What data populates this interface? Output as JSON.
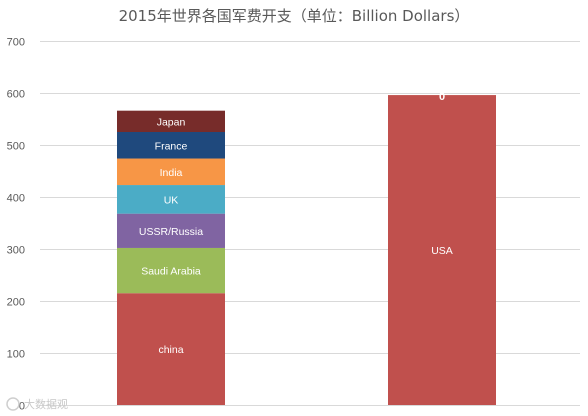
{
  "chart_data": {
    "type": "bar",
    "stacked": true,
    "title": "2015年世界各国军费开支（单位：Billion Dollars）",
    "xlabel": "",
    "ylabel": "",
    "ylim": [
      0,
      700
    ],
    "yticks": [
      0,
      100,
      200,
      300,
      400,
      500,
      600,
      700
    ],
    "grid": true,
    "legend": "none",
    "columns": [
      {
        "segments": [
          {
            "label": "china",
            "value": 215,
            "color": "#c0504d"
          },
          {
            "label": "Saudi Arabia",
            "value": 87,
            "color": "#9bbb59"
          },
          {
            "label": "USSR/Russia",
            "value": 66,
            "color": "#8064a2"
          },
          {
            "label": "UK",
            "value": 55,
            "color": "#4bacc6"
          },
          {
            "label": "India",
            "value": 51,
            "color": "#f79646"
          },
          {
            "label": "France",
            "value": 51,
            "color": "#1f497d"
          },
          {
            "label": "Japan",
            "value": 41,
            "color": "#772c2a"
          }
        ],
        "top_label": ""
      },
      {
        "segments": [
          {
            "label": "USA",
            "value": 596,
            "color": "#c0504d"
          }
        ],
        "top_label": "0"
      }
    ]
  },
  "watermark": {
    "text": "大数据观"
  }
}
